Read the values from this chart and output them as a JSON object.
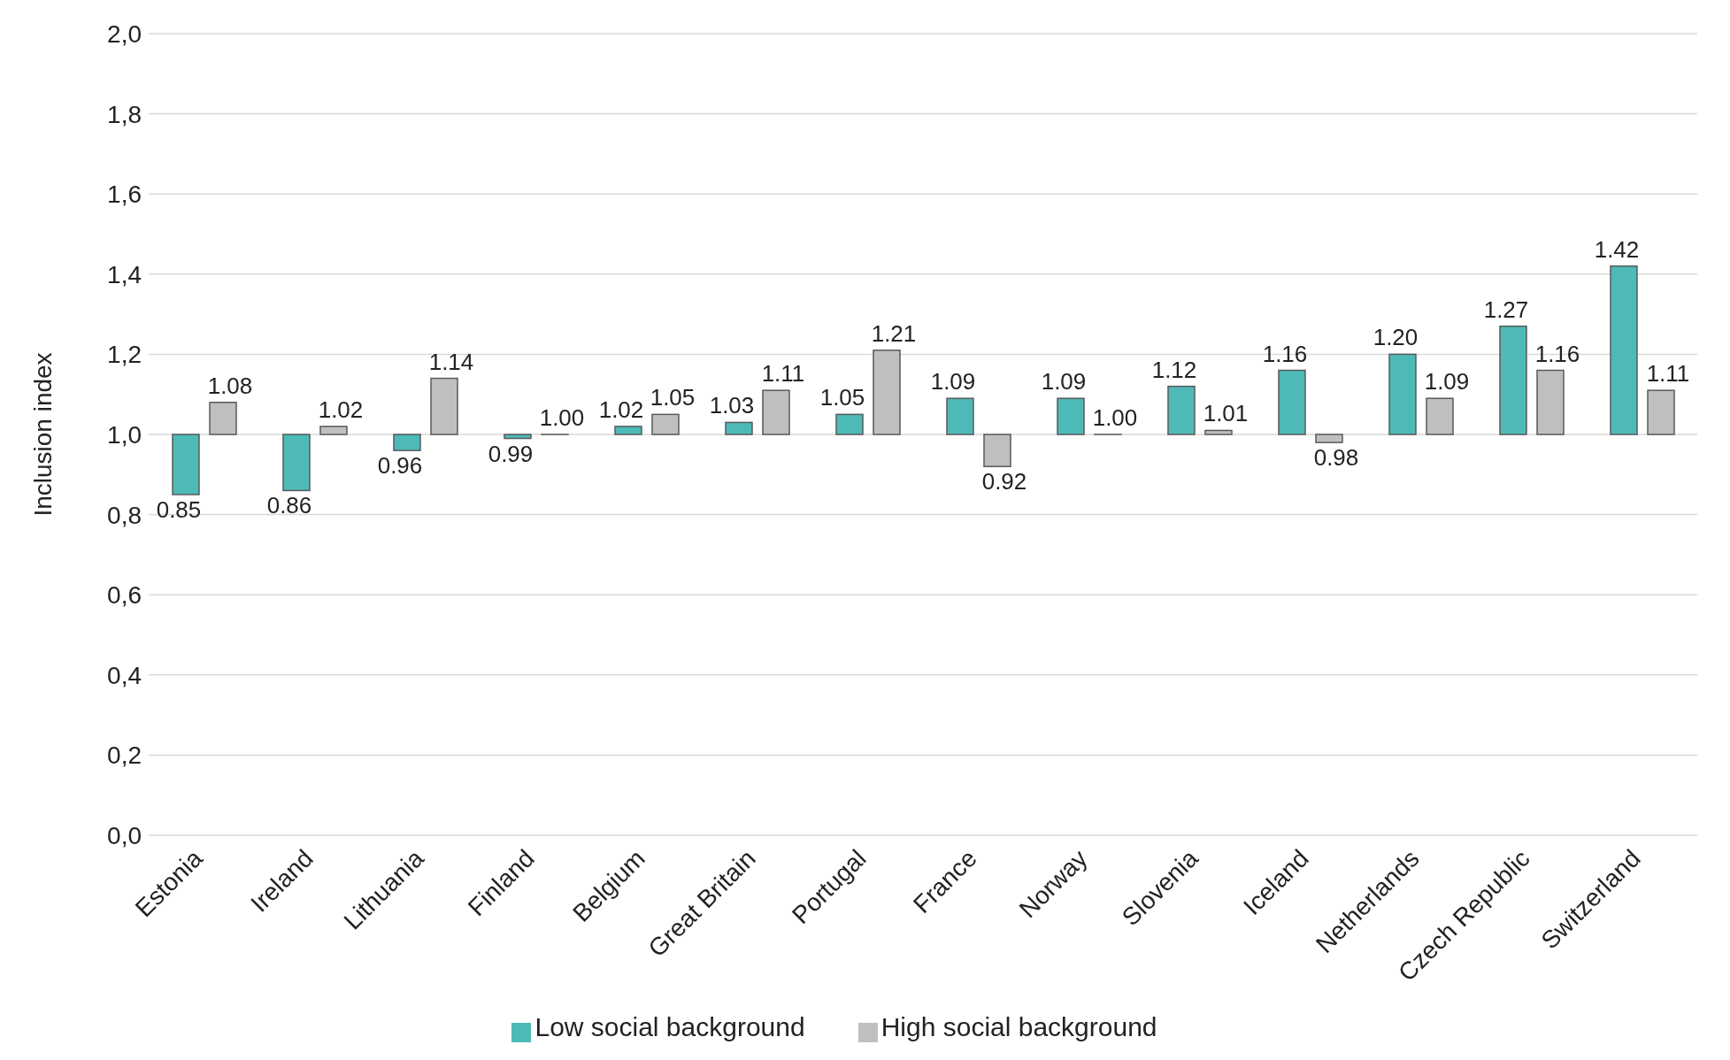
{
  "chart_data": {
    "type": "bar",
    "ylabel": "Inclusion index",
    "categories": [
      "Estonia",
      "Ireland",
      "Lithuania",
      "Finland",
      "Belgium",
      "Great Britain",
      "Portugal",
      "France",
      "Norway",
      "Slovenia",
      "Iceland",
      "Netherlands",
      "Czech Republic",
      "Switzerland"
    ],
    "series": [
      {
        "name": "Low social background",
        "color": "#4dbab8",
        "base": [
          1,
          1,
          1,
          1,
          1,
          1,
          1,
          1,
          1,
          1,
          1,
          1,
          1,
          1
        ],
        "values": [
          -0.15,
          -0.14,
          -0.04,
          -0.01,
          0.02,
          0.03,
          0.05,
          0.09,
          0.09,
          0.12,
          0.16,
          0.2,
          0.27,
          0.42
        ],
        "value_labels": [
          "0.85",
          "0.86",
          "0.96",
          "0.99",
          "1.02",
          "1.03",
          "1.05",
          "1.09",
          "1.09",
          "1.12",
          "1.16",
          "1.20",
          "1.27",
          "1.42"
        ]
      },
      {
        "name": "High social background",
        "color": "#bfbfbf",
        "base": [
          1,
          1,
          1,
          1,
          1,
          1,
          1,
          1,
          1,
          1,
          1,
          1,
          1,
          1
        ],
        "values": [
          0.08,
          0.02,
          0.14,
          0.0,
          0.05,
          0.11,
          0.21,
          -0.08,
          0.0,
          0.01,
          -0.02,
          0.09,
          0.16,
          0.11
        ],
        "value_labels": [
          "1.08",
          "1.02",
          "1.14",
          "1.00",
          "1.05",
          "1.11",
          "1.21",
          "0.92",
          "1.00",
          "1.01",
          "0.98",
          "1.09",
          "1.16",
          "1.11"
        ]
      }
    ],
    "ylim": [
      0,
      2
    ],
    "yticks": [
      {
        "value": 0,
        "label": "0,0"
      },
      {
        "value": 0.2,
        "label": "0,2"
      },
      {
        "value": 0.4,
        "label": "0,4"
      },
      {
        "value": 0.6,
        "label": "0,6"
      },
      {
        "value": 0.8,
        "label": "0,8"
      },
      {
        "value": 1,
        "label": "1,0"
      },
      {
        "value": 1.2,
        "label": "1,2"
      },
      {
        "value": 1.4,
        "label": "1,4"
      },
      {
        "value": 1.6,
        "label": "1,6"
      },
      {
        "value": 1.8,
        "label": "1,8"
      },
      {
        "value": 2,
        "label": "2,0"
      }
    ],
    "grid": "y",
    "legend": "bottom"
  }
}
